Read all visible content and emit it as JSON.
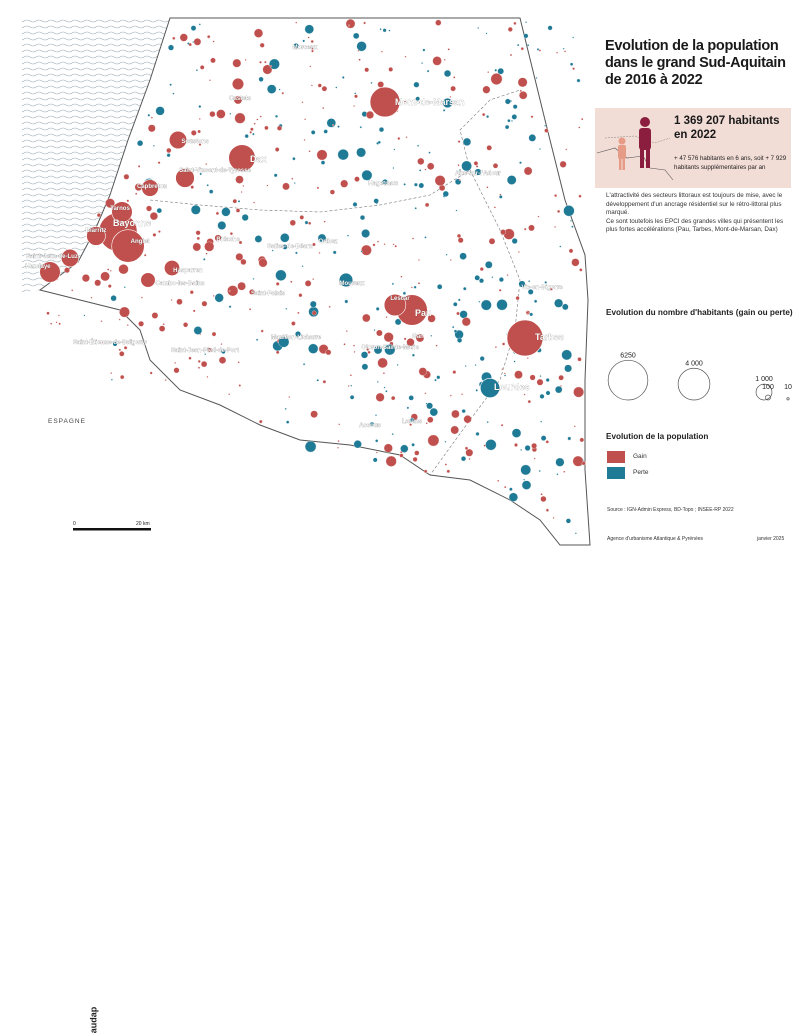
{
  "title": "Evolution de la population dans le grand Sud-Aquitain de 2016 à 2022",
  "highlight": {
    "total": "1 369 207 habitants en 2022",
    "change": "+ 47 576 habitants en 6 ans, soit + 7 929 habitants supplémentaires par an"
  },
  "description": {
    "p1": "L'attractivité des secteurs littoraux est toujours de mise, avec le développement d'un ancrage résidentiel sur le rétro-littoral plus marqué.",
    "p2": "Ce sont toutefois les EPCI des grandes villes qui présentent les plus fortes accélérations (Pau, Tarbes, Mont-de-Marsan, Dax)"
  },
  "legend_size": {
    "title": "Evolution du nombre d'habitants (gain ou perte)",
    "items": [
      {
        "label": "6250",
        "value": 6250
      },
      {
        "label": "4 000",
        "value": 4000
      },
      {
        "label": "1 000",
        "value": 1000
      },
      {
        "label": "100",
        "value": 100
      },
      {
        "label": "10",
        "value": 10
      }
    ]
  },
  "legend_population": {
    "title": "Evolution de la population",
    "items": [
      {
        "label": "Gain",
        "color": "#c0504d"
      },
      {
        "label": "Perte",
        "color": "#1f7a96"
      }
    ]
  },
  "source": "Source : IGN-Admin Express, BD-Topo ; INSEE-RP 2022",
  "organization": "Agence d'urbanisme Atlantique & Pyrénées",
  "date": "janvier 2025",
  "country_label": "ESPAGNE",
  "scale": {
    "start": "0",
    "end": "20 km"
  },
  "logo_text": "audap",
  "cities": [
    {
      "name": "Mont-de-Marsan",
      "value": 3800,
      "gain": true,
      "big": true
    },
    {
      "name": "Dax",
      "value": 3000,
      "gain": true,
      "big": true
    },
    {
      "name": "Bayonne",
      "value": 6250,
      "gain": true,
      "big": true
    },
    {
      "name": "Biarritz",
      "value": 1500,
      "gain": true,
      "big": false
    },
    {
      "name": "Anglet",
      "value": 4500,
      "gain": true,
      "big": false
    },
    {
      "name": "Hendaye",
      "value": 1800,
      "gain": true,
      "big": false
    },
    {
      "name": "Saint-Jean-de-Luz",
      "value": 1300,
      "gain": true,
      "big": false
    },
    {
      "name": "Tarnos",
      "value": 1800,
      "gain": true,
      "big": false
    },
    {
      "name": "Capbreton",
      "value": 1200,
      "gain": true,
      "big": false
    },
    {
      "name": "Saint-Vincent-de-Tyrosse",
      "value": 1500,
      "gain": true,
      "big": false
    },
    {
      "name": "Soustons",
      "value": 1300,
      "gain": true,
      "big": false
    },
    {
      "name": "Castets",
      "value": 300,
      "gain": true,
      "big": false
    },
    {
      "name": "Morcenx",
      "value": 150,
      "gain": false,
      "big": false
    },
    {
      "name": "Hagetmau",
      "value": 150,
      "gain": false,
      "big": false
    },
    {
      "name": "Aire-sur-l'Adour",
      "value": 200,
      "gain": false,
      "big": false
    },
    {
      "name": "Orthez",
      "value": 300,
      "gain": false,
      "big": false
    },
    {
      "name": "Salies-de-Béarn",
      "value": 120,
      "gain": false,
      "big": false
    },
    {
      "name": "Bidache",
      "value": 200,
      "gain": true,
      "big": false
    },
    {
      "name": "Hasparren",
      "value": 1000,
      "gain": true,
      "big": false
    },
    {
      "name": "Cambo-les-Bains",
      "value": 900,
      "gain": true,
      "big": false
    },
    {
      "name": "Saint-Palais",
      "value": 150,
      "gain": true,
      "big": false
    },
    {
      "name": "Mourenx",
      "value": 800,
      "gain": false,
      "big": false
    },
    {
      "name": "Pau",
      "value": 4000,
      "gain": true,
      "big": true
    },
    {
      "name": "Lescar",
      "value": 2000,
      "gain": true,
      "big": false
    },
    {
      "name": "Gan",
      "value": 300,
      "gain": true,
      "big": false
    },
    {
      "name": "Vic-en-Bigorre",
      "value": 200,
      "gain": false,
      "big": false
    },
    {
      "name": "Tarbes",
      "value": 5500,
      "gain": true,
      "big": true
    },
    {
      "name": "Lourdes",
      "value": 1600,
      "gain": false,
      "big": true
    },
    {
      "name": "Mauléon-Licharre",
      "value": 150,
      "gain": false,
      "big": false
    },
    {
      "name": "Saint-Étienne-de-Baïgorry",
      "value": 100,
      "gain": false,
      "big": false
    },
    {
      "name": "Saint-Jean-Pied-de-Port",
      "value": 100,
      "gain": true,
      "big": false
    },
    {
      "name": "Oloron-Sainte-Marie",
      "value": 300,
      "gain": false,
      "big": false
    },
    {
      "name": "Accous",
      "value": 60,
      "gain": false,
      "big": false
    },
    {
      "name": "Laruns",
      "value": 60,
      "gain": false,
      "big": false
    }
  ]
}
